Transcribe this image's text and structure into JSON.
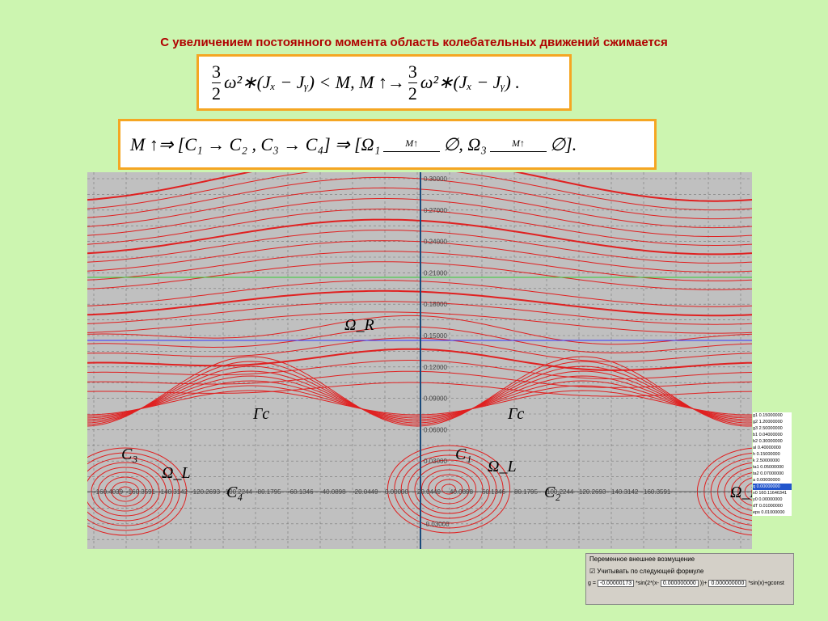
{
  "header": {
    "title": "С увеличением постоянного момента область колебательных движений сжимается"
  },
  "formula_1": {
    "num": "3",
    "den": "2",
    "expr_a": "ω²∗(Jₓ − Jᵧ) < M,   M ↑→",
    "expr_b": "ω²∗(Jₓ − Jᵧ) ."
  },
  "formula_2": {
    "part_a": "M ↑⇒ [C₁ → C₂ , C₃ → C₄] ⇒ [Ω₁",
    "arrow_1": "M↑",
    "part_b": "∅,  Ω₃",
    "arrow_2": "M↑",
    "part_c": "∅]."
  },
  "plot": {
    "y_labels": [
      "0.30000",
      "0.27000",
      "0.24000",
      "0.21000",
      "0.18000",
      "0.15000",
      "0.12000",
      "0.09000",
      "0.06000",
      "0.03000",
      "-0.03000"
    ],
    "x_labels": [
      "-160.4039",
      "-160.3591",
      "-140.3142",
      "-120.2693",
      "-100.2244",
      "-80.1795",
      "-60.1346",
      "-40.0898",
      "-20.0449",
      "0.00000",
      "20.0449",
      "40.0898",
      "60.1346",
      "80.1795",
      "100.2244",
      "120.2693",
      "140.3142",
      "160.3591"
    ],
    "annotations": [
      {
        "text": "Ω_R"
      },
      {
        "text": "Γc"
      },
      {
        "text": "Γc"
      },
      {
        "text": "C₃"
      },
      {
        "text": "Ω_L"
      },
      {
        "text": "C₄"
      },
      {
        "text": "C₁"
      },
      {
        "text": "Ω_L"
      },
      {
        "text": "C₂"
      },
      {
        "text": "Ω_L"
      }
    ]
  },
  "parameters": [
    [
      "g1",
      "0.15000000"
    ],
    [
      "g2",
      "1.20000000"
    ],
    [
      "g3",
      "2.50000000"
    ],
    [
      "b1",
      "0.04000000"
    ],
    [
      "b2",
      "0.30000000"
    ],
    [
      "al",
      "0.40000000"
    ],
    [
      "h",
      "0.15000000"
    ],
    [
      "k",
      "2.50000000"
    ],
    [
      "ta1",
      "0.05000000"
    ],
    [
      "ta2",
      "0.07000000"
    ],
    [
      "a",
      "0.00000000"
    ],
    [
      "q",
      "0.00000000"
    ],
    [
      "x0",
      "160.11646341"
    ],
    [
      "y0",
      "0.00000000"
    ],
    [
      "dT",
      "0.01000000"
    ],
    [
      "eps",
      "0.01000000"
    ]
  ],
  "panel": {
    "title": "Переменное внешнее возмущение",
    "checkbox": "Учитывать по следующей формуле",
    "g_label": "g =",
    "field_1": "-0.00000173",
    "text_1": "*sin(2*(x-",
    "field_2": "0.000000000",
    "text_2": "))+",
    "field_3": "0.000000000",
    "text_3": "*sin(x)+gconst"
  }
}
